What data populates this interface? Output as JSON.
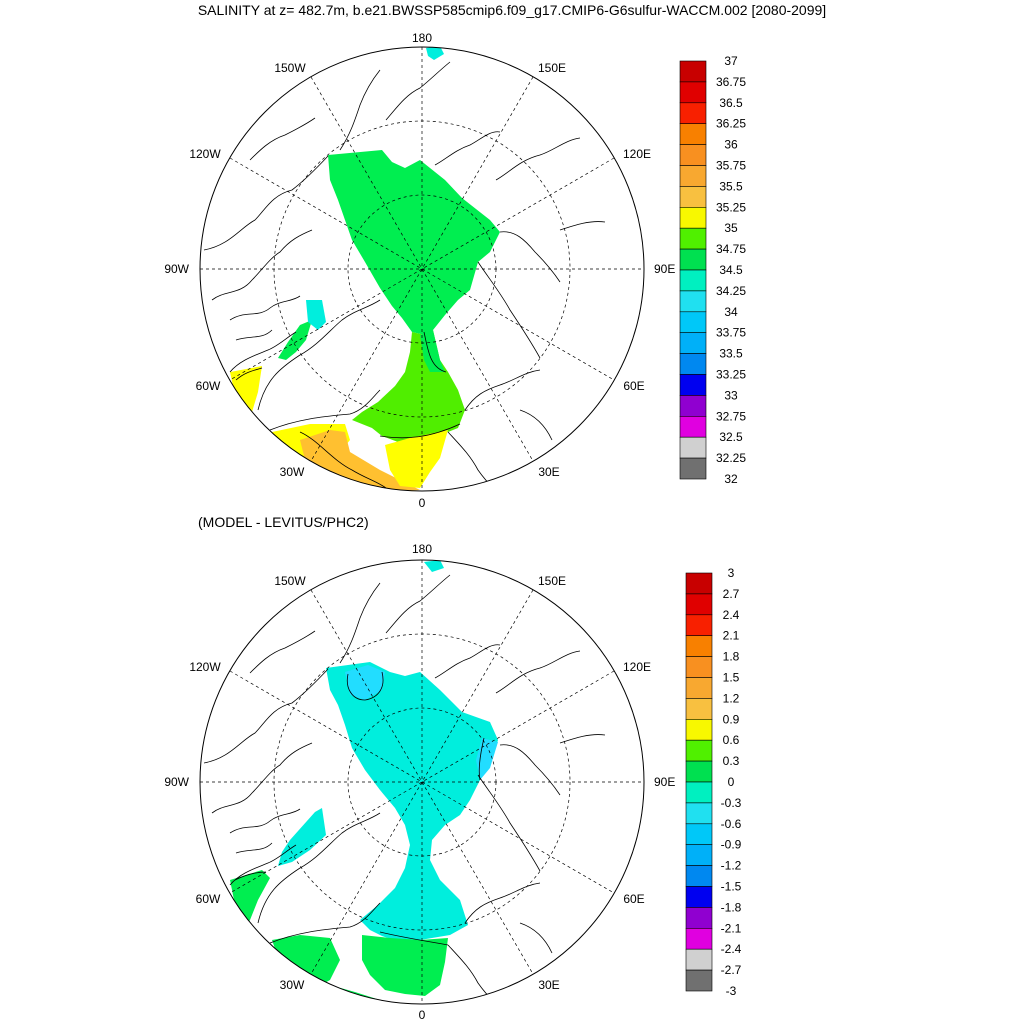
{
  "title": "SALINITY at z= 482.7m, b.e21.BWSSP585cmip6.f09_g17.CMIP6-G6sulfur-WACCM.002 [2080-2099]",
  "subtitle": "(MODEL - LEVITUS/PHC2)",
  "longitude_labels": {
    "top": "180",
    "bottom": "0",
    "left": "90W",
    "right": "90E",
    "upper_left": "150W",
    "upper_right": "150E",
    "mid_upper_left": "120W",
    "mid_upper_right": "120E",
    "mid_lower_left": "60W",
    "mid_lower_right": "60E",
    "lower_left": "30W",
    "lower_right": "30E"
  },
  "colors": {
    "green_34_75": "#00ee50",
    "green_35": "#50ee00",
    "yellow": "#ffff00",
    "light_orange": "#ffc030",
    "cyan": "#00eedd",
    "light_cyan": "#22ddff",
    "land": "#ffffff"
  },
  "colorbar_top": {
    "labels": [
      "37",
      "36.75",
      "36.5",
      "36.25",
      "36",
      "35.75",
      "35.5",
      "35.25",
      "35",
      "34.75",
      "34.5",
      "34.25",
      "34",
      "33.75",
      "33.5",
      "33.25",
      "33",
      "32.75",
      "32.5",
      "32.25",
      "32"
    ],
    "colors": [
      "#c80000",
      "#e00000",
      "#f82000",
      "#f88000",
      "#f89020",
      "#f8a830",
      "#f8c040",
      "#f8f800",
      "#50f000",
      "#00e050",
      "#00f0c0",
      "#20e0f0",
      "#00c8f8",
      "#00b0f8",
      "#0088f0",
      "#0000f0",
      "#9000d0",
      "#e000e0",
      "#d0d0d0",
      "#707070"
    ]
  },
  "colorbar_bottom": {
    "labels": [
      "3",
      "2.7",
      "2.4",
      "2.1",
      "1.8",
      "1.5",
      "1.2",
      "0.9",
      "0.6",
      "0.3",
      "0",
      "-0.3",
      "-0.6",
      "-0.9",
      "-1.2",
      "-1.5",
      "-1.8",
      "-2.1",
      "-2.4",
      "-2.7",
      "-3"
    ],
    "colors": [
      "#c80000",
      "#e00000",
      "#f82000",
      "#f88000",
      "#f89020",
      "#f8a830",
      "#f8c040",
      "#f8f800",
      "#50f000",
      "#00e050",
      "#00f0c0",
      "#20e0f0",
      "#00c8f8",
      "#00b0f8",
      "#0088f0",
      "#0000f0",
      "#9000d0",
      "#e000e0",
      "#d0d0d0",
      "#707070"
    ]
  }
}
